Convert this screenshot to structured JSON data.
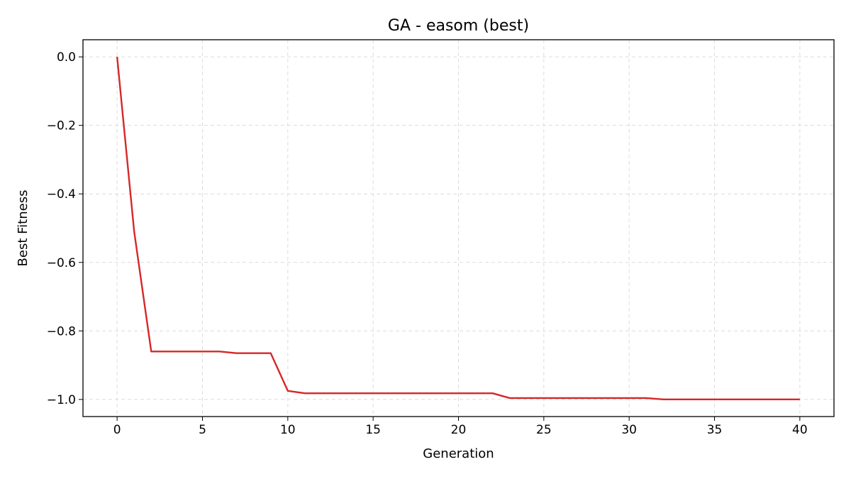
{
  "chart_data": {
    "type": "line",
    "title": "GA - easom (best)",
    "xlabel": "Generation",
    "ylabel": "Best Fitness",
    "xlim": [
      -2,
      42
    ],
    "ylim": [
      -1.05,
      0.05
    ],
    "xticks": [
      0,
      5,
      10,
      15,
      20,
      25,
      30,
      35,
      40
    ],
    "xtick_labels": [
      "0",
      "5",
      "10",
      "15",
      "20",
      "25",
      "30",
      "35",
      "40"
    ],
    "yticks": [
      0.0,
      -0.2,
      -0.4,
      -0.6,
      -0.8,
      -1.0
    ],
    "ytick_labels": [
      "0.0",
      "−0.2",
      "−0.4",
      "−0.6",
      "−0.8",
      "−1.0"
    ],
    "grid": true,
    "series": [
      {
        "color": "#d62728",
        "x": [
          0,
          1,
          2,
          3,
          4,
          5,
          6,
          7,
          8,
          9,
          10,
          11,
          12,
          13,
          14,
          15,
          16,
          17,
          18,
          19,
          20,
          21,
          22,
          23,
          24,
          25,
          26,
          27,
          28,
          29,
          30,
          31,
          32,
          33,
          34,
          35,
          36,
          37,
          38,
          39,
          40
        ],
        "y": [
          0.0,
          -0.51,
          -0.86,
          -0.86,
          -0.86,
          -0.86,
          -0.86,
          -0.865,
          -0.865,
          -0.865,
          -0.975,
          -0.982,
          -0.982,
          -0.982,
          -0.982,
          -0.982,
          -0.982,
          -0.982,
          -0.982,
          -0.982,
          -0.982,
          -0.982,
          -0.982,
          -0.996,
          -0.996,
          -0.996,
          -0.996,
          -0.996,
          -0.996,
          -0.996,
          -0.996,
          -0.996,
          -1.0,
          -1.0,
          -1.0,
          -1.0,
          -1.0,
          -1.0,
          -1.0,
          -1.0,
          -1.0
        ]
      }
    ]
  }
}
